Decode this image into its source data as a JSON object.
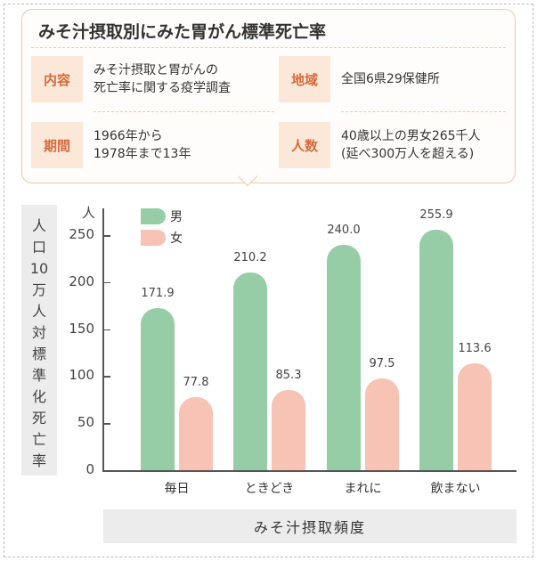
{
  "info": {
    "title": "みそ汁摂取別にみた胃がん標準死亡率",
    "items": [
      {
        "label": "内容",
        "lines": [
          "みそ汁摂取と胃がんの",
          "死亡率に関する疫学調査"
        ]
      },
      {
        "label": "地域",
        "lines": [
          "全国6県29保健所"
        ]
      },
      {
        "label": "期間",
        "lines": [
          "1966年から",
          "1978年まで13年"
        ]
      },
      {
        "label": "人数",
        "lines": [
          "40歳以上の男女265千人",
          "(延べ300万人を超える)"
        ]
      }
    ]
  },
  "chart_data": {
    "type": "bar",
    "title": "",
    "ylabel": "人口10万人対標準化死亡率",
    "ylabel_chars": [
      "人",
      "口",
      "10",
      "万",
      "人",
      "対",
      "標",
      "準",
      "化",
      "死",
      "亡",
      "率"
    ],
    "xlabel": "みそ汁摂取頻度",
    "y_unit": "人",
    "ylim": [
      0,
      250
    ],
    "yticks": [
      0,
      50,
      100,
      150,
      200,
      250
    ],
    "categories": [
      "毎日",
      "ときどき",
      "まれに",
      "飲まない"
    ],
    "series": [
      {
        "name": "男",
        "values": [
          171.9,
          210.2,
          240.0,
          255.9
        ],
        "labels": [
          "171.9",
          "210.2",
          "240.0",
          "255.9"
        ],
        "color": "#97cda6"
      },
      {
        "name": "女",
        "values": [
          77.8,
          85.3,
          97.5,
          113.6
        ],
        "labels": [
          "77.8",
          "85.3",
          "97.5",
          "113.6"
        ],
        "color": "#f6c3b5"
      }
    ],
    "legend_position": "top-left",
    "grid": false
  }
}
